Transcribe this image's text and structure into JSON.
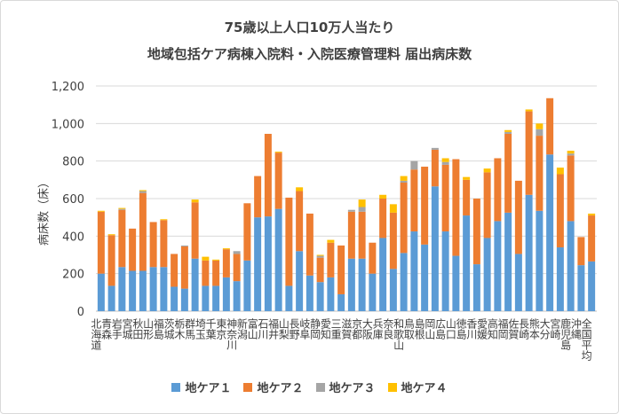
{
  "chart_data": {
    "type": "bar",
    "stacked": true,
    "title": "75歳以上人口10万人当たり",
    "subtitle": "地域包括ケア病棟入院料・入院医療管理料 届出病床数",
    "xlabel": "",
    "ylabel": "病床数（床）",
    "ylim": [
      0,
      1200
    ],
    "yticks": [
      "0",
      "200",
      "400",
      "600",
      "800",
      "1,000",
      "1,200"
    ],
    "grid": true,
    "legend_position": "bottom",
    "categories": [
      "北海道",
      "青森",
      "岩手",
      "宮城",
      "秋田",
      "山形",
      "福島",
      "茨城",
      "栃木",
      "群馬",
      "埼玉",
      "千葉",
      "東京",
      "神奈川",
      "新潟",
      "富山",
      "石川",
      "福井",
      "山梨",
      "長野",
      "岐阜",
      "静岡",
      "愛知",
      "三重",
      "滋賀",
      "京都",
      "大阪",
      "兵庫",
      "奈良",
      "和歌山",
      "鳥取",
      "島根",
      "岡山",
      "広島",
      "山口",
      "徳島",
      "香川",
      "愛媛",
      "高知",
      "福岡",
      "佐賀",
      "長崎",
      "熊本",
      "大分",
      "宮崎",
      "鹿児島",
      "沖縄",
      "全国平均"
    ],
    "series": [
      {
        "name": "地ケア１",
        "color": "#5b9bd5",
        "values": [
          200,
          135,
          235,
          215,
          215,
          235,
          235,
          130,
          120,
          280,
          135,
          135,
          180,
          160,
          270,
          500,
          505,
          545,
          135,
          320,
          190,
          155,
          180,
          90,
          280,
          280,
          200,
          390,
          225,
          310,
          425,
          355,
          665,
          425,
          295,
          510,
          250,
          390,
          480,
          525,
          305,
          620,
          535,
          835,
          340,
          480,
          245,
          265
        ]
      },
      {
        "name": "地ケア２",
        "color": "#ed7d31",
        "values": [
          330,
          270,
          305,
          225,
          415,
          240,
          250,
          175,
          225,
          300,
          135,
          135,
          150,
          145,
          305,
          220,
          440,
          300,
          470,
          320,
          330,
          130,
          185,
          260,
          250,
          250,
          165,
          210,
          300,
          375,
          330,
          415,
          195,
          355,
          515,
          190,
          350,
          350,
          335,
          420,
          390,
          445,
          400,
          300,
          390,
          350,
          150,
          245
        ]
      },
      {
        "name": "地ケア３",
        "color": "#a5a5a5",
        "values": [
          0,
          0,
          5,
          0,
          10,
          0,
          0,
          0,
          5,
          0,
          0,
          0,
          0,
          15,
          0,
          0,
          0,
          0,
          0,
          0,
          0,
          10,
          0,
          0,
          10,
          25,
          0,
          0,
          0,
          10,
          45,
          0,
          10,
          15,
          0,
          0,
          0,
          0,
          0,
          10,
          0,
          0,
          35,
          0,
          0,
          10,
          0,
          0
        ]
      },
      {
        "name": "地ケア４",
        "color": "#ffc000",
        "values": [
          5,
          5,
          5,
          0,
          5,
          0,
          5,
          0,
          0,
          15,
          20,
          5,
          5,
          0,
          0,
          0,
          0,
          5,
          0,
          20,
          0,
          5,
          15,
          0,
          0,
          40,
          0,
          20,
          45,
          25,
          0,
          0,
          0,
          20,
          0,
          15,
          0,
          20,
          0,
          10,
          0,
          10,
          30,
          0,
          35,
          15,
          0,
          10
        ]
      }
    ]
  }
}
